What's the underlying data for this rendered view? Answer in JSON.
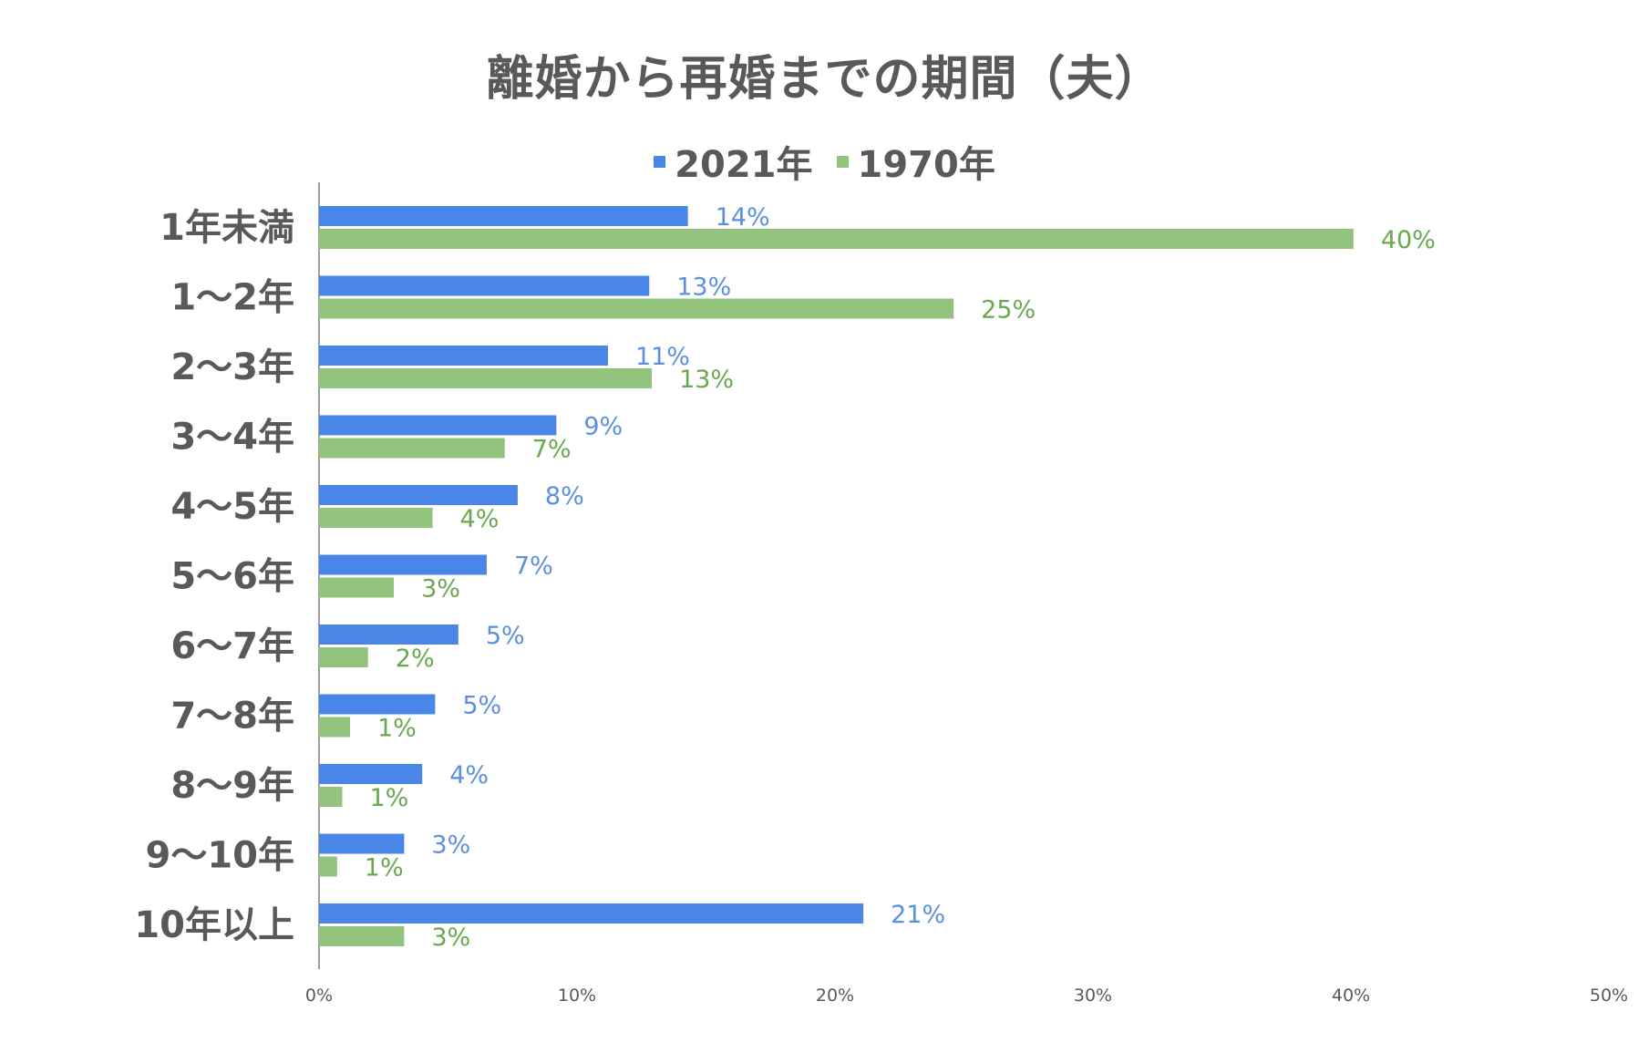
{
  "chart_data": {
    "type": "bar",
    "orientation": "horizontal",
    "title": "離婚から再婚までの期間（夫）",
    "categories": [
      "1年未満",
      "1～2年",
      "2～3年",
      "3～4年",
      "4～5年",
      "5～6年",
      "6～7年",
      "7～8年",
      "8～9年",
      "9～10年",
      "10年以上"
    ],
    "series": [
      {
        "name": "2021年",
        "color": "#4A86E8",
        "label_color": "#5B8FE0",
        "values": [
          14.3,
          12.8,
          11.2,
          9.2,
          7.7,
          6.5,
          5.4,
          4.5,
          4.0,
          3.3,
          21.1
        ],
        "labels": [
          "14%",
          "13%",
          "11%",
          "9%",
          "8%",
          "7%",
          "5%",
          "5%",
          "4%",
          "3%",
          "21%"
        ]
      },
      {
        "name": "1970年",
        "color": "#93C47D",
        "label_color": "#6AA84F",
        "values": [
          40.1,
          24.6,
          12.9,
          7.2,
          4.4,
          2.9,
          1.9,
          1.2,
          0.9,
          0.7,
          3.3
        ],
        "labels": [
          "40%",
          "25%",
          "13%",
          "7%",
          "4%",
          "3%",
          "2%",
          "1%",
          "1%",
          "1%",
          "3%"
        ]
      }
    ],
    "xlim": [
      0,
      50
    ],
    "x_ticks": [
      "0%",
      "10%",
      "20%",
      "30%",
      "40%",
      "50%"
    ],
    "legend_position": "top",
    "grid": false
  }
}
